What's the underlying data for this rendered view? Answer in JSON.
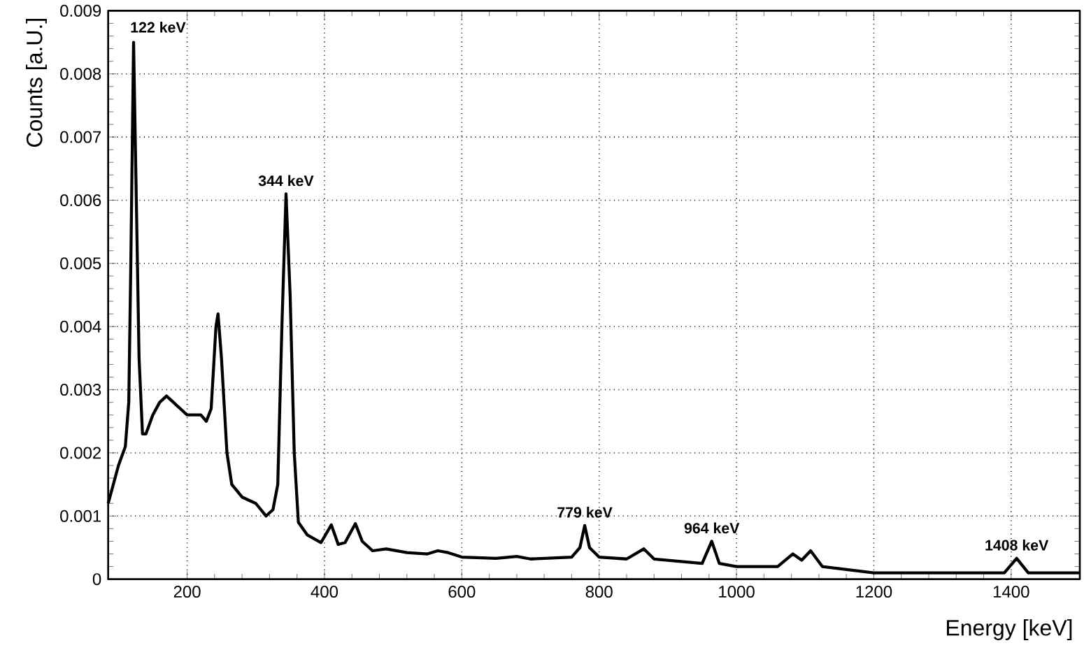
{
  "chart_data": {
    "type": "line",
    "xlabel": "Energy [keV]",
    "ylabel": "Counts [a.U.]",
    "xlim": [
      85,
      1500
    ],
    "ylim": [
      0,
      0.009
    ],
    "xticks": [
      200,
      400,
      600,
      800,
      1000,
      1200,
      1400
    ],
    "yticks": [
      0,
      0.001,
      0.002,
      0.003,
      0.004,
      0.005,
      0.006,
      0.007,
      0.008,
      0.009
    ],
    "grid": true,
    "line_style": "solid",
    "marker": "none",
    "series": [
      {
        "color": "#000000",
        "x": [
          85,
          100,
          110,
          115,
          118,
          122,
          126,
          130,
          135,
          140,
          150,
          160,
          170,
          180,
          200,
          220,
          228,
          235,
          242,
          245,
          250,
          258,
          265,
          280,
          300,
          315,
          325,
          332,
          338,
          344,
          350,
          356,
          362,
          375,
          395,
          410,
          420,
          430,
          445,
          455,
          470,
          490,
          520,
          550,
          565,
          580,
          600,
          650,
          680,
          700,
          760,
          772,
          779,
          786,
          800,
          840,
          865,
          880,
          950,
          964,
          975,
          1000,
          1060,
          1082,
          1095,
          1108,
          1125,
          1200,
          1300,
          1390,
          1408,
          1425,
          1500
        ],
        "values": [
          0.0012,
          0.0018,
          0.0021,
          0.0028,
          0.005,
          0.0085,
          0.006,
          0.0035,
          0.0023,
          0.0023,
          0.0026,
          0.0028,
          0.0029,
          0.0028,
          0.0026,
          0.0026,
          0.0025,
          0.0027,
          0.004,
          0.0042,
          0.0035,
          0.002,
          0.0015,
          0.0013,
          0.0012,
          0.001,
          0.0011,
          0.0015,
          0.004,
          0.0061,
          0.0045,
          0.002,
          0.0009,
          0.0007,
          0.00058,
          0.00086,
          0.00055,
          0.00058,
          0.00088,
          0.0006,
          0.00045,
          0.00048,
          0.00042,
          0.0004,
          0.00045,
          0.00042,
          0.00035,
          0.00033,
          0.00036,
          0.00032,
          0.00035,
          0.0005,
          0.00085,
          0.0005,
          0.00035,
          0.00032,
          0.00048,
          0.00032,
          0.00025,
          0.0006,
          0.00025,
          0.0002,
          0.0002,
          0.0004,
          0.0003,
          0.00045,
          0.0002,
          0.0001,
          0.0001,
          0.0001,
          0.00033,
          0.0001,
          0.0001
        ]
      }
    ],
    "annotations": [
      {
        "text": "122 keV",
        "x": 122,
        "y": 0.0085
      },
      {
        "text": "344 keV",
        "x": 344,
        "y": 0.0061
      },
      {
        "text": "779 keV",
        "x": 779,
        "y": 0.00085
      },
      {
        "text": "964 keV",
        "x": 964,
        "y": 0.0006
      },
      {
        "text": "1408 keV",
        "x": 1408,
        "y": 0.00033
      }
    ]
  }
}
